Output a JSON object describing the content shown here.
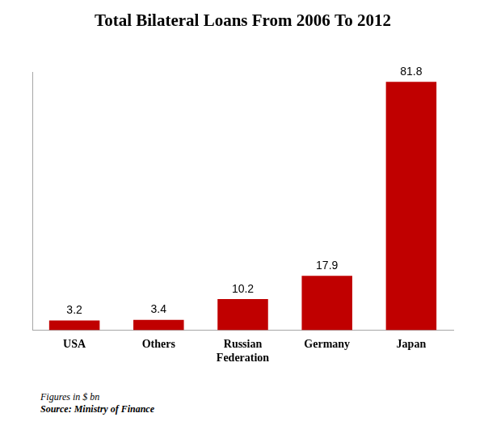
{
  "chart_data": {
    "type": "bar",
    "title": "Total Bilateral Loans From 2006 To 2012",
    "categories": [
      "USA",
      "Others",
      "Russian Federation",
      "Germany",
      "Japan"
    ],
    "values": [
      3.2,
      3.4,
      10.2,
      17.9,
      81.8
    ],
    "color": "#c00000",
    "ylim": [
      0,
      85
    ],
    "grid": false,
    "data_labels": true,
    "tick_labels": "x",
    "annotations": [
      "Figures in $ bn",
      "Source: Ministry of Finance"
    ]
  }
}
